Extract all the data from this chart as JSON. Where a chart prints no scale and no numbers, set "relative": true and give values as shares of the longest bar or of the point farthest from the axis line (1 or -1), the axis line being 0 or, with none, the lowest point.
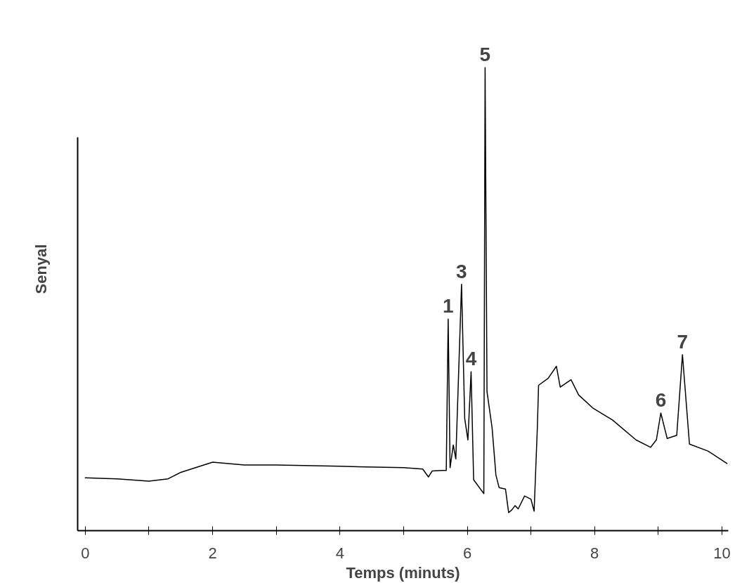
{
  "chart_data": {
    "type": "line",
    "relative": true,
    "xlabel": "Temps (minuts)",
    "ylabel": "Senyal",
    "color": "#000000",
    "x": [
      0,
      0.5,
      1.0,
      1.3,
      1.5,
      2.0,
      2.5,
      3.0,
      4.0,
      5.0,
      5.3,
      5.39,
      5.45,
      5.6,
      5.67,
      5.7,
      5.73,
      5.78,
      5.82,
      5.91,
      5.96,
      6.01,
      6.06,
      6.1,
      6.26,
      6.28,
      6.31,
      6.39,
      6.45,
      6.5,
      6.6,
      6.65,
      6.7,
      6.75,
      6.8,
      6.9,
      7.0,
      7.05,
      7.1,
      7.12,
      7.27,
      7.4,
      7.46,
      7.63,
      7.75,
      7.98,
      8.28,
      8.65,
      8.88,
      8.97,
      9.04,
      9.14,
      9.29,
      9.38,
      9.49,
      9.78,
      10.08
    ],
    "values": [
      0.114,
      0.112,
      0.107,
      0.112,
      0.126,
      0.148,
      0.142,
      0.142,
      0.139,
      0.136,
      0.133,
      0.116,
      0.129,
      0.13,
      0.13,
      0.457,
      0.136,
      0.185,
      0.155,
      0.532,
      0.242,
      0.196,
      0.343,
      0.11,
      0.08,
      1.0,
      0.3,
      0.222,
      0.12,
      0.093,
      0.09,
      0.039,
      0.045,
      0.054,
      0.047,
      0.075,
      0.068,
      0.042,
      0.22,
      0.314,
      0.329,
      0.355,
      0.31,
      0.326,
      0.293,
      0.264,
      0.239,
      0.196,
      0.18,
      0.196,
      0.254,
      0.199,
      0.206,
      0.38,
      0.187,
      0.172,
      0.145
    ],
    "xlim": [
      -0.12,
      10.1
    ],
    "xticks": [
      0,
      {
        "value": 1,
        "label": null
      },
      2,
      {
        "value": 3,
        "label": null
      },
      4,
      {
        "value": 5,
        "label": null
      },
      6,
      {
        "value": 7,
        "label": null
      },
      8,
      {
        "value": 9,
        "label": null
      },
      10
    ],
    "grid": false,
    "annotations": [
      {
        "text": "1",
        "x": 5.7,
        "y": 0.457
      },
      {
        "text": "3",
        "x": 5.91,
        "y": 0.532
      },
      {
        "text": "4",
        "x": 6.06,
        "y": 0.343
      },
      {
        "text": "5",
        "x": 6.28,
        "y": 1.0
      },
      {
        "text": "6",
        "x": 9.04,
        "y": 0.254
      },
      {
        "text": "7",
        "x": 9.38,
        "y": 0.38
      }
    ]
  }
}
